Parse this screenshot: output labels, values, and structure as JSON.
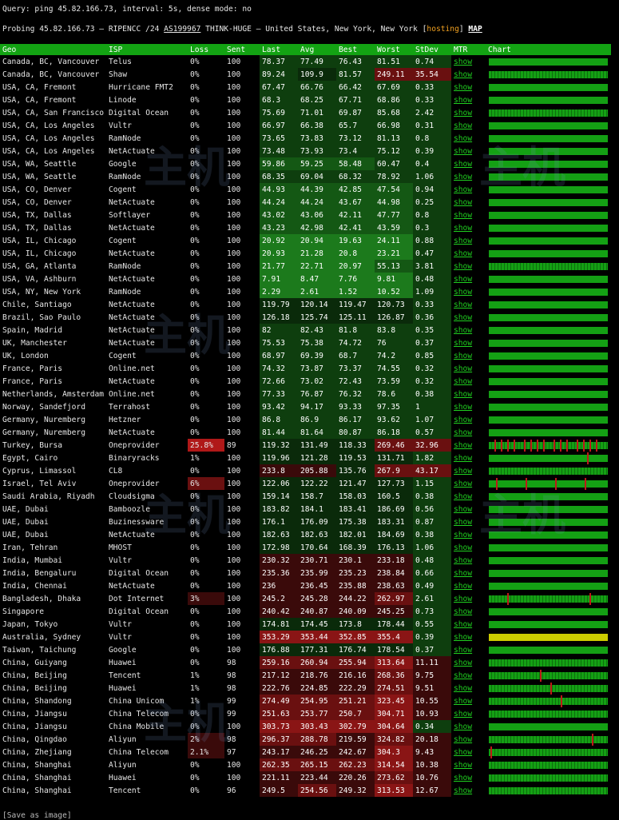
{
  "query": {
    "text": "Query: ping 45.82.166.73, interval: 5s, dense mode: no"
  },
  "probing": {
    "prefix": "Probing 45.82.166.73 — RIPENCC /24 ",
    "asn": "AS199967",
    "middle": " THINK-HUGE — United States, New York, New York ",
    "bracket_open": "[",
    "hosting": "hosting",
    "bracket_close": "]",
    "map": "MAP"
  },
  "table": {
    "headers": [
      "Geo",
      "ISP",
      "Loss",
      "Sent",
      "Last",
      "Avg",
      "Best",
      "Worst",
      "StDev",
      "MTR",
      "Chart"
    ],
    "show_label": "show",
    "rows": [
      {
        "geo": "Canada, BC, Vancouver",
        "isp": "Telus",
        "loss": "0%",
        "sent": "100",
        "last": "78.37",
        "avg": "77.49",
        "best": "76.43",
        "worst": "81.51",
        "stdev": "0.74"
      },
      {
        "geo": "Canada, BC, Vancouver",
        "isp": "Shaw",
        "loss": "0%",
        "sent": "100",
        "last": "89.24",
        "avg": "109.9",
        "best": "81.57",
        "worst": "249.11",
        "stdev": "35.54"
      },
      {
        "geo": "USA, CA, Fremont",
        "isp": "Hurricane FMT2",
        "loss": "0%",
        "sent": "100",
        "last": "67.47",
        "avg": "66.76",
        "best": "66.42",
        "worst": "67.69",
        "stdev": "0.33"
      },
      {
        "geo": "USA, CA, Fremont",
        "isp": "Linode",
        "loss": "0%",
        "sent": "100",
        "last": "68.3",
        "avg": "68.25",
        "best": "67.71",
        "worst": "68.86",
        "stdev": "0.33"
      },
      {
        "geo": "USA, CA, San Francisco",
        "isp": "Digital Ocean",
        "loss": "0%",
        "sent": "100",
        "last": "75.69",
        "avg": "71.01",
        "best": "69.87",
        "worst": "85.68",
        "stdev": "2.42"
      },
      {
        "geo": "USA, CA, Los Angeles",
        "isp": "Vultr",
        "loss": "0%",
        "sent": "100",
        "last": "66.97",
        "avg": "66.38",
        "best": "65.7",
        "worst": "66.98",
        "stdev": "0.31"
      },
      {
        "geo": "USA, CA, Los Angeles",
        "isp": "RamNode",
        "loss": "0%",
        "sent": "100",
        "last": "73.65",
        "avg": "73.83",
        "best": "73.12",
        "worst": "81.13",
        "stdev": "0.8"
      },
      {
        "geo": "USA, CA, Los Angeles",
        "isp": "NetActuate",
        "loss": "0%",
        "sent": "100",
        "last": "73.48",
        "avg": "73.93",
        "best": "73.4",
        "worst": "75.12",
        "stdev": "0.39"
      },
      {
        "geo": "USA, WA, Seattle",
        "isp": "Google",
        "loss": "0%",
        "sent": "100",
        "last": "59.86",
        "avg": "59.25",
        "best": "58.48",
        "worst": "60.47",
        "stdev": "0.4"
      },
      {
        "geo": "USA, WA, Seattle",
        "isp": "RamNode",
        "loss": "0%",
        "sent": "100",
        "last": "68.35",
        "avg": "69.04",
        "best": "68.32",
        "worst": "78.92",
        "stdev": "1.06"
      },
      {
        "geo": "USA, CO, Denver",
        "isp": "Cogent",
        "loss": "0%",
        "sent": "100",
        "last": "44.93",
        "avg": "44.39",
        "best": "42.85",
        "worst": "47.54",
        "stdev": "0.94"
      },
      {
        "geo": "USA, CO, Denver",
        "isp": "NetActuate",
        "loss": "0%",
        "sent": "100",
        "last": "44.24",
        "avg": "44.24",
        "best": "43.67",
        "worst": "44.98",
        "stdev": "0.25"
      },
      {
        "geo": "USA, TX, Dallas",
        "isp": "Softlayer",
        "loss": "0%",
        "sent": "100",
        "last": "43.02",
        "avg": "43.06",
        "best": "42.11",
        "worst": "47.77",
        "stdev": "0.8"
      },
      {
        "geo": "USA, TX, Dallas",
        "isp": "NetActuate",
        "loss": "0%",
        "sent": "100",
        "last": "43.23",
        "avg": "42.98",
        "best": "42.41",
        "worst": "43.59",
        "stdev": "0.3"
      },
      {
        "geo": "USA, IL, Chicago",
        "isp": "Cogent",
        "loss": "0%",
        "sent": "100",
        "last": "20.92",
        "avg": "20.94",
        "best": "19.63",
        "worst": "24.11",
        "stdev": "0.88"
      },
      {
        "geo": "USA, IL, Chicago",
        "isp": "NetActuate",
        "loss": "0%",
        "sent": "100",
        "last": "20.93",
        "avg": "21.28",
        "best": "20.8",
        "worst": "23.21",
        "stdev": "0.47"
      },
      {
        "geo": "USA, GA, Atlanta",
        "isp": "RamNode",
        "loss": "0%",
        "sent": "100",
        "last": "21.77",
        "avg": "22.71",
        "best": "20.97",
        "worst": "55.13",
        "stdev": "3.81"
      },
      {
        "geo": "USA, VA, Ashburn",
        "isp": "NetActuate",
        "loss": "0%",
        "sent": "100",
        "last": "7.91",
        "avg": "8.47",
        "best": "7.76",
        "worst": "9.81",
        "stdev": "0.48"
      },
      {
        "geo": "USA, NY, New York",
        "isp": "RamNode",
        "loss": "0%",
        "sent": "100",
        "last": "2.29",
        "avg": "2.61",
        "best": "1.52",
        "worst": "10.52",
        "stdev": "1.09"
      },
      {
        "geo": "Chile, Santiago",
        "isp": "NetActuate",
        "loss": "0%",
        "sent": "100",
        "last": "119.79",
        "avg": "120.14",
        "best": "119.47",
        "worst": "120.73",
        "stdev": "0.33"
      },
      {
        "geo": "Brazil, Sao Paulo",
        "isp": "NetActuate",
        "loss": "0%",
        "sent": "100",
        "last": "126.18",
        "avg": "125.74",
        "best": "125.11",
        "worst": "126.87",
        "stdev": "0.36"
      },
      {
        "geo": "Spain, Madrid",
        "isp": "NetActuate",
        "loss": "0%",
        "sent": "100",
        "last": "82",
        "avg": "82.43",
        "best": "81.8",
        "worst": "83.8",
        "stdev": "0.35"
      },
      {
        "geo": "UK, Manchester",
        "isp": "NetActuate",
        "loss": "0%",
        "sent": "100",
        "last": "75.53",
        "avg": "75.38",
        "best": "74.72",
        "worst": "76",
        "stdev": "0.37"
      },
      {
        "geo": "UK, London",
        "isp": "Cogent",
        "loss": "0%",
        "sent": "100",
        "last": "68.97",
        "avg": "69.39",
        "best": "68.7",
        "worst": "74.2",
        "stdev": "0.85"
      },
      {
        "geo": "France, Paris",
        "isp": "Online.net",
        "loss": "0%",
        "sent": "100",
        "last": "74.32",
        "avg": "73.87",
        "best": "73.37",
        "worst": "74.55",
        "stdev": "0.32"
      },
      {
        "geo": "France, Paris",
        "isp": "NetActuate",
        "loss": "0%",
        "sent": "100",
        "last": "72.66",
        "avg": "73.02",
        "best": "72.43",
        "worst": "73.59",
        "stdev": "0.32"
      },
      {
        "geo": "Netherlands, Amsterdam",
        "isp": "Online.net",
        "loss": "0%",
        "sent": "100",
        "last": "77.33",
        "avg": "76.87",
        "best": "76.32",
        "worst": "78.6",
        "stdev": "0.38"
      },
      {
        "geo": "Norway, Sandefjord",
        "isp": "Terrahost",
        "loss": "0%",
        "sent": "100",
        "last": "93.42",
        "avg": "94.17",
        "best": "93.33",
        "worst": "97.35",
        "stdev": "1"
      },
      {
        "geo": "Germany, Nuremberg",
        "isp": "Hetzner",
        "loss": "0%",
        "sent": "100",
        "last": "86.8",
        "avg": "86.9",
        "best": "86.17",
        "worst": "93.62",
        "stdev": "1.07"
      },
      {
        "geo": "Germany, Nuremberg",
        "isp": "NetActuate",
        "loss": "0%",
        "sent": "100",
        "last": "81.44",
        "avg": "81.64",
        "best": "80.87",
        "worst": "86.18",
        "stdev": "0.57"
      },
      {
        "geo": "Turkey, Bursa",
        "isp": "Oneprovider",
        "loss": "25.8%",
        "sent": "89",
        "last": "119.32",
        "avg": "131.49",
        "best": "118.33",
        "worst": "269.46",
        "stdev": "32.96"
      },
      {
        "geo": "Egypt, Cairo",
        "isp": "Binaryracks",
        "loss": "1%",
        "sent": "100",
        "last": "119.96",
        "avg": "121.28",
        "best": "119.53",
        "worst": "131.71",
        "stdev": "1.82"
      },
      {
        "geo": "Cyprus, Limassol",
        "isp": "CL8",
        "loss": "0%",
        "sent": "100",
        "last": "233.8",
        "avg": "205.88",
        "best": "135.76",
        "worst": "267.9",
        "stdev": "43.17"
      },
      {
        "geo": "Israel, Tel Aviv",
        "isp": "Oneprovider",
        "loss": "6%",
        "sent": "100",
        "last": "122.06",
        "avg": "122.22",
        "best": "121.47",
        "worst": "127.73",
        "stdev": "1.15"
      },
      {
        "geo": "Saudi Arabia, Riyadh",
        "isp": "Cloudsigma",
        "loss": "0%",
        "sent": "100",
        "last": "159.14",
        "avg": "158.7",
        "best": "158.03",
        "worst": "160.5",
        "stdev": "0.38"
      },
      {
        "geo": "UAE, Dubai",
        "isp": "Bamboozle",
        "loss": "0%",
        "sent": "100",
        "last": "183.82",
        "avg": "184.1",
        "best": "183.41",
        "worst": "186.69",
        "stdev": "0.56"
      },
      {
        "geo": "UAE, Dubai",
        "isp": "Buzinessware",
        "loss": "0%",
        "sent": "100",
        "last": "176.1",
        "avg": "176.09",
        "best": "175.38",
        "worst": "183.31",
        "stdev": "0.87"
      },
      {
        "geo": "UAE, Dubai",
        "isp": "NetActuate",
        "loss": "0%",
        "sent": "100",
        "last": "182.63",
        "avg": "182.63",
        "best": "182.01",
        "worst": "184.69",
        "stdev": "0.38"
      },
      {
        "geo": "Iran, Tehran",
        "isp": "MHOST",
        "loss": "0%",
        "sent": "100",
        "last": "172.98",
        "avg": "170.64",
        "best": "168.39",
        "worst": "176.13",
        "stdev": "1.06"
      },
      {
        "geo": "India, Mumbai",
        "isp": "Vultr",
        "loss": "0%",
        "sent": "100",
        "last": "230.32",
        "avg": "230.71",
        "best": "230.1",
        "worst": "233.18",
        "stdev": "0.48"
      },
      {
        "geo": "India, Bengaluru",
        "isp": "Digital Ocean",
        "loss": "0%",
        "sent": "100",
        "last": "235.36",
        "avg": "235.99",
        "best": "235.23",
        "worst": "238.84",
        "stdev": "0.66"
      },
      {
        "geo": "India, Chennai",
        "isp": "NetActuate",
        "loss": "0%",
        "sent": "100",
        "last": "236",
        "avg": "236.45",
        "best": "235.88",
        "worst": "238.63",
        "stdev": "0.49"
      },
      {
        "geo": "Bangladesh, Dhaka",
        "isp": "Dot Internet",
        "loss": "3%",
        "sent": "100",
        "last": "245.2",
        "avg": "245.28",
        "best": "244.22",
        "worst": "262.97",
        "stdev": "2.61"
      },
      {
        "geo": "Singapore",
        "isp": "Digital Ocean",
        "loss": "0%",
        "sent": "100",
        "last": "240.42",
        "avg": "240.87",
        "best": "240.09",
        "worst": "245.25",
        "stdev": "0.73"
      },
      {
        "geo": "Japan, Tokyo",
        "isp": "Vultr",
        "loss": "0%",
        "sent": "100",
        "last": "174.81",
        "avg": "174.45",
        "best": "173.8",
        "worst": "178.44",
        "stdev": "0.55"
      },
      {
        "geo": "Australia, Sydney",
        "isp": "Vultr",
        "loss": "0%",
        "sent": "100",
        "last": "353.29",
        "avg": "353.44",
        "best": "352.85",
        "worst": "355.4",
        "stdev": "0.39"
      },
      {
        "geo": "Taiwan, Taichung",
        "isp": "Google",
        "loss": "0%",
        "sent": "100",
        "last": "176.88",
        "avg": "177.31",
        "best": "176.74",
        "worst": "178.54",
        "stdev": "0.37"
      },
      {
        "geo": "China, Guiyang",
        "isp": "Huawei",
        "loss": "0%",
        "sent": "98",
        "last": "259.16",
        "avg": "260.94",
        "best": "255.94",
        "worst": "313.64",
        "stdev": "11.11"
      },
      {
        "geo": "China, Beijing",
        "isp": "Tencent",
        "loss": "1%",
        "sent": "98",
        "last": "217.12",
        "avg": "218.76",
        "best": "216.16",
        "worst": "268.36",
        "stdev": "9.75"
      },
      {
        "geo": "China, Beijing",
        "isp": "Huawei",
        "loss": "1%",
        "sent": "98",
        "last": "222.76",
        "avg": "224.85",
        "best": "222.29",
        "worst": "274.51",
        "stdev": "9.51"
      },
      {
        "geo": "China, Shandong",
        "isp": "China Unicom",
        "loss": "1%",
        "sent": "99",
        "last": "274.49",
        "avg": "254.95",
        "best": "251.21",
        "worst": "323.45",
        "stdev": "10.55"
      },
      {
        "geo": "China, Jiangsu",
        "isp": "China Telecom",
        "loss": "0%",
        "sent": "99",
        "last": "251.63",
        "avg": "253.77",
        "best": "250.7",
        "worst": "304.71",
        "stdev": "10.93"
      },
      {
        "geo": "China, Jiangsu",
        "isp": "China Mobile",
        "loss": "0%",
        "sent": "100",
        "last": "303.73",
        "avg": "303.43",
        "best": "302.79",
        "worst": "304.64",
        "stdev": "0.34"
      },
      {
        "geo": "China, Qingdao",
        "isp": "Aliyun",
        "loss": "2%",
        "sent": "98",
        "last": "296.37",
        "avg": "288.78",
        "best": "219.59",
        "worst": "324.82",
        "stdev": "20.18"
      },
      {
        "geo": "China, Zhejiang",
        "isp": "China Telecom",
        "loss": "2.1%",
        "sent": "97",
        "last": "243.17",
        "avg": "246.25",
        "best": "242.67",
        "worst": "304.3",
        "stdev": "9.43"
      },
      {
        "geo": "China, Shanghai",
        "isp": "Aliyun",
        "loss": "0%",
        "sent": "100",
        "last": "262.35",
        "avg": "265.15",
        "best": "262.23",
        "worst": "314.54",
        "stdev": "10.38"
      },
      {
        "geo": "China, Shanghai",
        "isp": "Huawei",
        "loss": "0%",
        "sent": "100",
        "last": "221.11",
        "avg": "223.44",
        "best": "220.26",
        "worst": "273.62",
        "stdev": "10.76"
      },
      {
        "geo": "China, Shanghai",
        "isp": "Tencent",
        "loss": "0%",
        "sent": "96",
        "last": "249.5",
        "avg": "254.56",
        "best": "249.32",
        "worst": "313.53",
        "stdev": "12.67"
      }
    ]
  },
  "footer": {
    "save_label": "[Save as image]"
  },
  "colors": {
    "header_bg": "#13a313",
    "show_link": "#1fd01f",
    "hosting": "#f0a020",
    "loss_bad": "#b01818",
    "chart_bar": "#14a014",
    "chart_bar_high": "#cccc00"
  }
}
